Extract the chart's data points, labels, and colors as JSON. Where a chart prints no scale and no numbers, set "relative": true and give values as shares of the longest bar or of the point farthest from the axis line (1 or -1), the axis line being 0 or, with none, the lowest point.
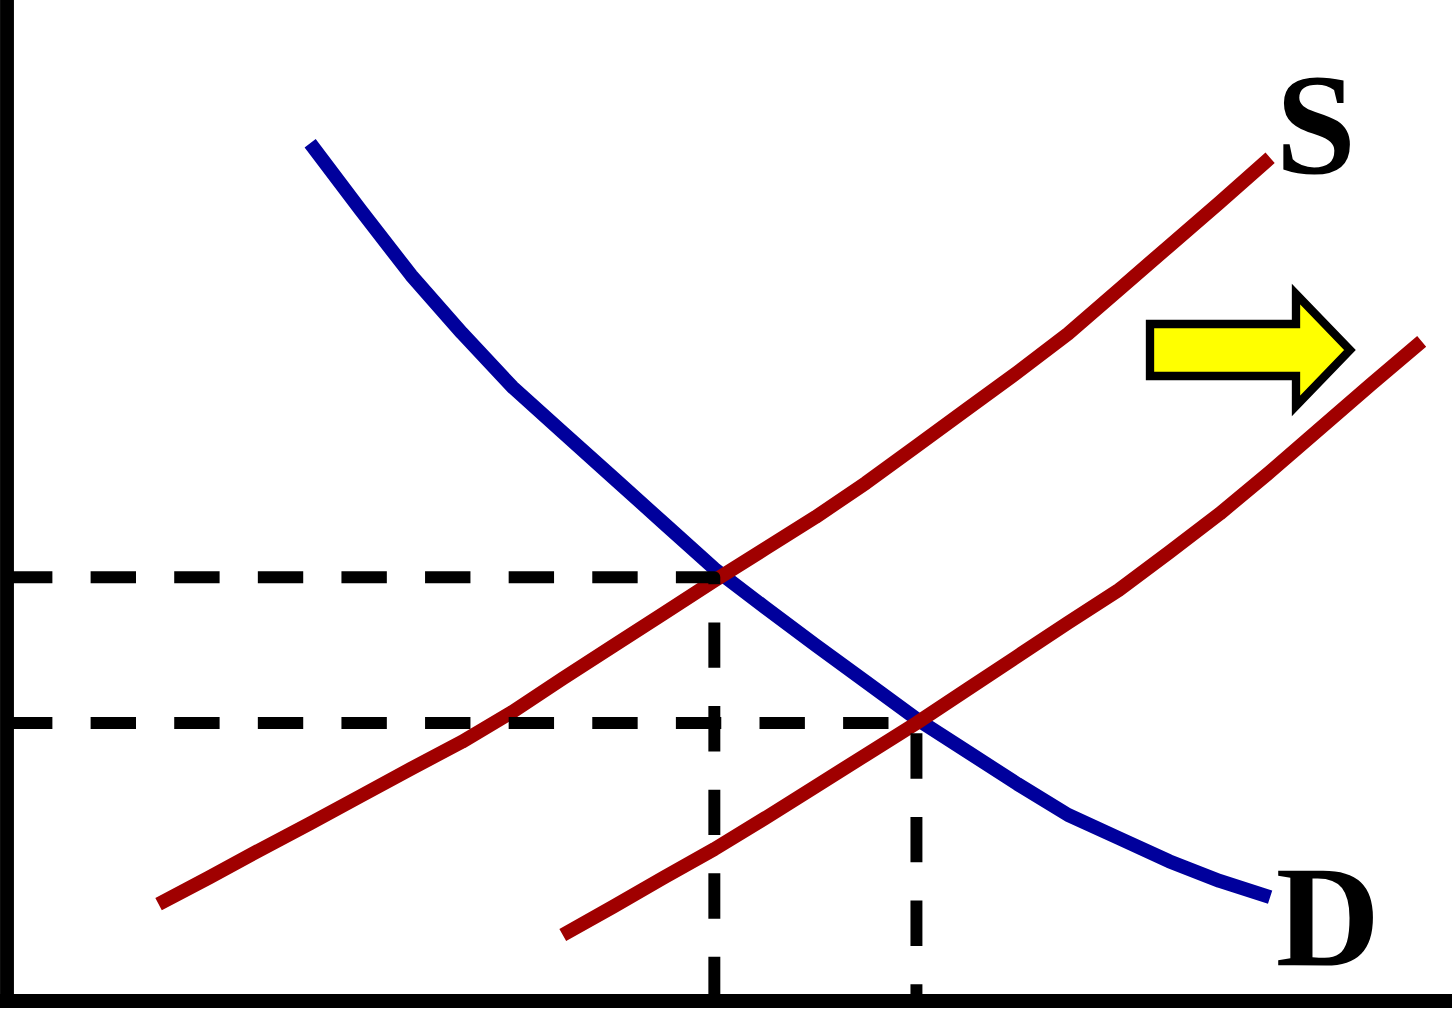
{
  "chart_data": {
    "type": "line",
    "relative": true,
    "categories": [
      null,
      null,
      null,
      null,
      null,
      null,
      null,
      null,
      null,
      null,
      null,
      null,
      null,
      null,
      null,
      null,
      null,
      null,
      null,
      null,
      null,
      null,
      null,
      null,
      null,
      null,
      null,
      null,
      null
    ],
    "series": [
      {
        "name": "D",
        "color": "#00009c",
        "values": [
          null,
          null,
          null,
          null,
          null,
          null,
          1.0,
          0.922,
          0.846,
          0.779,
          0.716,
          0.663,
          0.61,
          0.557,
          0.504,
          0.459,
          0.415,
          0.372,
          0.329,
          0.291,
          0.253,
          0.217,
          0.19,
          0.163,
          0.14,
          0.121,
          null,
          null,
          null
        ]
      },
      {
        "name": "S",
        "color": "#a00000",
        "values": [
          null,
          null,
          null,
          0.113,
          0.144,
          0.176,
          0.207,
          0.239,
          0.271,
          0.302,
          0.337,
          0.376,
          0.414,
          0.452,
          0.49,
          0.527,
          0.564,
          0.604,
          0.647,
          0.69,
          0.733,
          0.778,
          0.829,
          0.88,
          0.931,
          0.983,
          null,
          null,
          null
        ]
      },
      {
        "color": "#a00000",
        "values": [
          null,
          null,
          null,
          null,
          null,
          null,
          null,
          null,
          null,
          null,
          null,
          0.077,
          0.11,
          0.144,
          0.177,
          0.213,
          0.25,
          0.287,
          0.324,
          0.363,
          0.402,
          0.441,
          0.479,
          0.523,
          0.568,
          0.617,
          0.668,
          0.719,
          0.769
        ]
      },
      {
        "type": "step",
        "color": "#000000",
        "line_style": "dashed",
        "values": [
          0.494,
          0.494,
          0.494,
          0.494,
          0.494,
          0.494,
          0.494,
          0.494,
          0.494,
          0.494,
          0.494,
          0.494,
          0.494,
          0.494,
          0,
          null,
          null,
          null,
          null,
          null,
          null,
          null,
          null,
          null,
          null,
          null,
          null,
          null,
          null
        ]
      },
      {
        "type": "step",
        "color": "#000000",
        "line_style": "dashed",
        "values": [
          0.324,
          0.324,
          0.324,
          0.324,
          0.324,
          0.324,
          0.324,
          0.324,
          0.324,
          0.324,
          0.324,
          0.324,
          0.324,
          0.324,
          0.324,
          0.324,
          0.324,
          0.324,
          0,
          null,
          null,
          null,
          null,
          null,
          null,
          null,
          null,
          null,
          null
        ]
      }
    ]
  }
}
